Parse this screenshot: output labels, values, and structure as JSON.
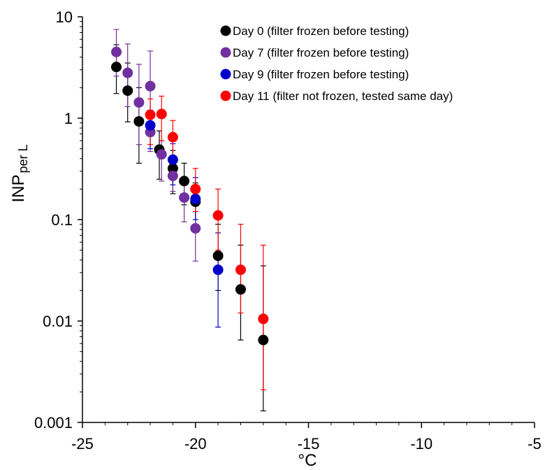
{
  "chart_data": {
    "type": "scatter",
    "xlabel": "°C",
    "ylabel_main": "INP",
    "ylabel_sub": "per L",
    "xlim": [
      -25,
      -5
    ],
    "ylim": [
      0.001,
      10
    ],
    "yscale": "log",
    "x_ticks": [
      -25,
      -20,
      -15,
      -10,
      -5
    ],
    "x_tick_labels": [
      "-25",
      "-20",
      "-15",
      "-10",
      "-5"
    ],
    "y_ticks": [
      0.001,
      0.01,
      0.1,
      1,
      10
    ],
    "y_tick_labels": [
      "0.001",
      "0.01",
      "0.1",
      "1",
      "10"
    ],
    "grid": false,
    "legend_position": "top-right",
    "series": [
      {
        "name": "Day 0 (filter frozen before testing)",
        "color": "#000000",
        "points": [
          {
            "x": -23.5,
            "y": 3.2,
            "lo": 1.75,
            "hi": 5.3
          },
          {
            "x": -23.0,
            "y": 1.87,
            "lo": 0.92,
            "hi": 3.5
          },
          {
            "x": -22.5,
            "y": 0.93,
            "lo": 0.36,
            "hi": 2.0
          },
          {
            "x": -21.6,
            "y": 0.49,
            "lo": 0.25,
            "hi": 0.75
          },
          {
            "x": -21.0,
            "y": 0.32,
            "lo": 0.18,
            "hi": 0.48
          },
          {
            "x": -20.5,
            "y": 0.24,
            "lo": 0.14,
            "hi": 0.36
          },
          {
            "x": -20.0,
            "y": 0.15,
            "lo": 0.09,
            "hi": 0.23
          },
          {
            "x": -19.0,
            "y": 0.044,
            "lo": 0.02,
            "hi": 0.09
          },
          {
            "x": -18.0,
            "y": 0.0205,
            "lo": 0.0065,
            "hi": 0.056
          },
          {
            "x": -17.0,
            "y": 0.0065,
            "lo": 0.0013,
            "hi": 0.035
          }
        ]
      },
      {
        "name": "Day 7 (filter frozen before testing)",
        "color": "#7030A0",
        "points": [
          {
            "x": -23.5,
            "y": 4.5,
            "lo": 2.6,
            "hi": 7.5
          },
          {
            "x": -23.0,
            "y": 2.8,
            "lo": 1.3,
            "hi": 5.4
          },
          {
            "x": -22.5,
            "y": 1.43,
            "lo": 0.55,
            "hi": 3.4
          },
          {
            "x": -22.0,
            "y": 2.07,
            "lo": 1.1,
            "hi": 4.6
          },
          {
            "x": -22.0,
            "y": 0.73,
            "lo": 0.47,
            "hi": 1.0
          },
          {
            "x": -21.5,
            "y": 0.44,
            "lo": 0.24,
            "hi": 0.6
          },
          {
            "x": -21.0,
            "y": 0.27,
            "lo": 0.19,
            "hi": 0.35
          },
          {
            "x": -20.5,
            "y": 0.165,
            "lo": 0.095,
            "hi": 0.24
          },
          {
            "x": -20.0,
            "y": 0.082,
            "lo": 0.039,
            "hi": 0.19
          }
        ]
      },
      {
        "name": "Day 9 (filter frozen before testing)",
        "color": "#0000CC",
        "points": [
          {
            "x": -22.0,
            "y": 0.85,
            "lo": 0.5,
            "hi": 1.2
          },
          {
            "x": -21.0,
            "y": 0.39,
            "lo": 0.22,
            "hi": 0.56
          },
          {
            "x": -20.0,
            "y": 0.16,
            "lo": 0.1,
            "hi": 0.26
          },
          {
            "x": -19.0,
            "y": 0.032,
            "lo": 0.0087,
            "hi": 0.074
          }
        ]
      },
      {
        "name": "Day 11 (filter not frozen, tested same day)",
        "color": "#FF0000",
        "points": [
          {
            "x": -22.0,
            "y": 1.08,
            "lo": 0.55,
            "hi": 1.55
          },
          {
            "x": -21.5,
            "y": 1.1,
            "lo": 0.6,
            "hi": 1.65
          },
          {
            "x": -21.0,
            "y": 0.65,
            "lo": 0.32,
            "hi": 0.95
          },
          {
            "x": -20.0,
            "y": 0.2,
            "lo": 0.12,
            "hi": 0.32
          },
          {
            "x": -19.0,
            "y": 0.11,
            "lo": 0.05,
            "hi": 0.2
          },
          {
            "x": -18.0,
            "y": 0.032,
            "lo": 0.012,
            "hi": 0.09
          },
          {
            "x": -17.0,
            "y": 0.0105,
            "lo": 0.0021,
            "hi": 0.056
          }
        ]
      }
    ]
  }
}
